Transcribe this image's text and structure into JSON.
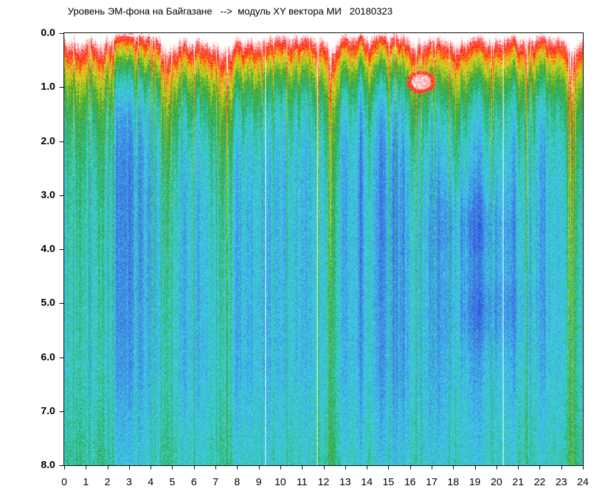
{
  "chart_data": {
    "type": "heatmap",
    "title": "Уровень ЭМ-фона на Байгазане   -->  модуль XY вектора МИ   20180323",
    "xlabel": "",
    "ylabel": "",
    "x_range": [
      0,
      24
    ],
    "y_range": [
      0.0,
      8.0
    ],
    "y_inverted": true,
    "x_ticks": [
      "0",
      "1",
      "2",
      "3",
      "4",
      "5",
      "6",
      "7",
      "8",
      "9",
      "10",
      "11",
      "12",
      "13",
      "14",
      "15",
      "16",
      "17",
      "18",
      "19",
      "20",
      "21",
      "22",
      "23",
      "24"
    ],
    "y_ticks": [
      "0.0",
      "1.0",
      "2.0",
      "3.0",
      "4.0",
      "5.0",
      "6.0",
      "7.0",
      "8.0"
    ],
    "grid": false,
    "colormap": [
      "#1a1ad0",
      "#3f6fe0",
      "#40d8e8",
      "#2aa030",
      "#f0e020",
      "#ff1010",
      "#ffffff"
    ],
    "gaps_x": [
      9.3,
      11.7,
      20.3
    ],
    "hotspot": {
      "x": 16.5,
      "y": 0.9
    },
    "calm_regions": [
      {
        "x": 19.0,
        "y": 3.6
      },
      {
        "x": 19.6,
        "y": 5.1
      }
    ]
  }
}
